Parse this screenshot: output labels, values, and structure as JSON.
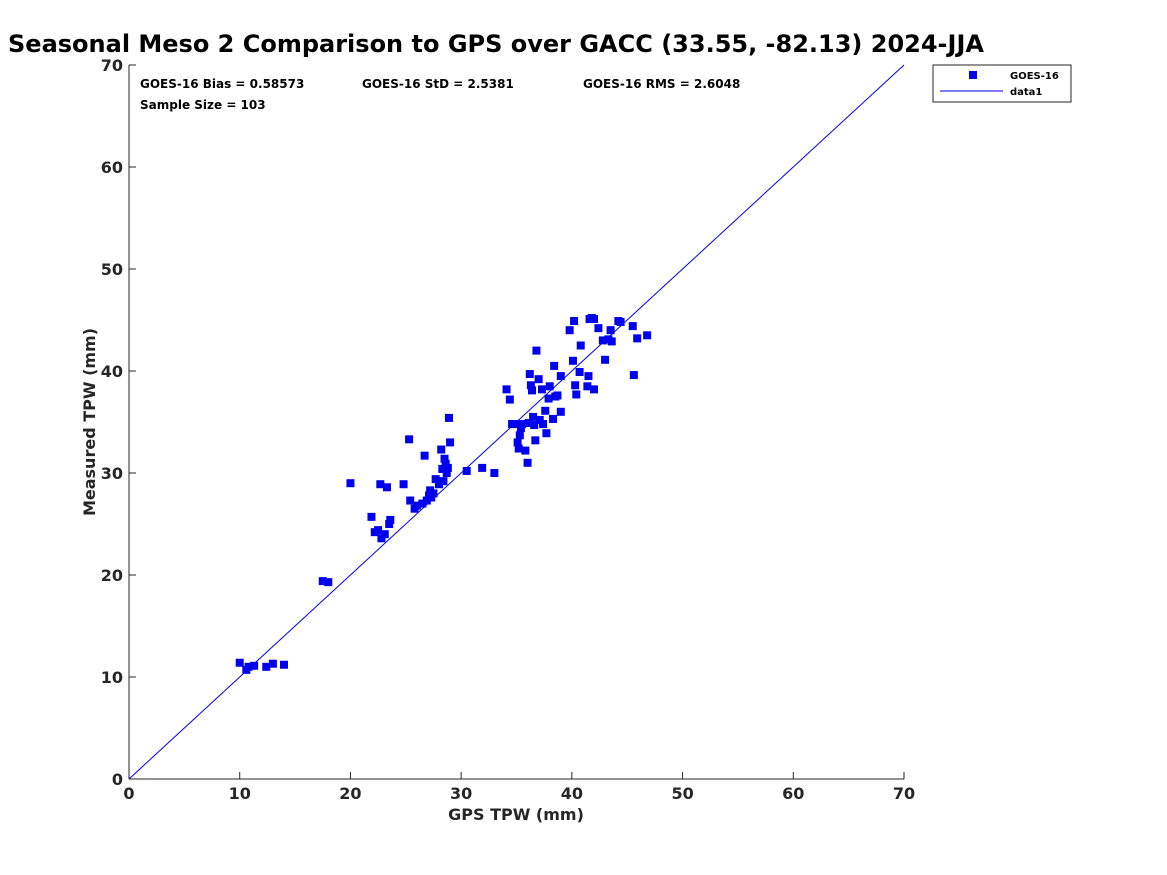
{
  "chart_data": {
    "type": "scatter",
    "title": "Seasonal Meso 2 Comparison to GPS over GACC (33.55, -82.13) 2024-JJA",
    "xlabel": "GPS TPW (mm)",
    "ylabel": "Measured TPW (mm)",
    "xlim": [
      0,
      70
    ],
    "ylim": [
      0,
      70
    ],
    "xticks": [
      "0",
      "10",
      "20",
      "30",
      "40",
      "50",
      "60",
      "70"
    ],
    "yticks": [
      "0",
      "10",
      "20",
      "30",
      "40",
      "50",
      "60",
      "70"
    ],
    "grid": false,
    "legend_position": "top-right, outside plot",
    "annotations": {
      "bias": "GOES-16 Bias = 0.58573",
      "std": "GOES-16 StD = 2.5381",
      "rms": "GOES-16 RMS = 2.6048",
      "sample": "Sample Size = 103"
    },
    "series": [
      {
        "name": "GOES-16",
        "kind": "scatter",
        "marker": "square",
        "color": "#0000ee",
        "points": [
          [
            10.0,
            11.4
          ],
          [
            10.6,
            10.7
          ],
          [
            10.8,
            11.0
          ],
          [
            11.3,
            11.1
          ],
          [
            12.4,
            11.0
          ],
          [
            13.0,
            11.3
          ],
          [
            14.0,
            11.2
          ],
          [
            17.5,
            19.4
          ],
          [
            18.0,
            19.3
          ],
          [
            21.9,
            25.7
          ],
          [
            22.2,
            24.2
          ],
          [
            22.5,
            24.4
          ],
          [
            22.7,
            28.9
          ],
          [
            22.8,
            23.6
          ],
          [
            23.1,
            24.0
          ],
          [
            23.3,
            28.6
          ],
          [
            23.5,
            25.0
          ],
          [
            23.6,
            25.4
          ],
          [
            24.8,
            28.9
          ],
          [
            25.3,
            33.3
          ],
          [
            25.4,
            27.3
          ],
          [
            25.8,
            26.5
          ],
          [
            26.0,
            26.8
          ],
          [
            26.5,
            27.0
          ],
          [
            26.7,
            31.7
          ],
          [
            26.9,
            27.3
          ],
          [
            27.1,
            27.8
          ],
          [
            27.2,
            28.3
          ],
          [
            27.3,
            27.6
          ],
          [
            27.5,
            28.0
          ],
          [
            27.7,
            29.4
          ],
          [
            28.0,
            28.9
          ],
          [
            28.2,
            32.3
          ],
          [
            28.3,
            30.4
          ],
          [
            28.4,
            29.2
          ],
          [
            28.5,
            31.4
          ],
          [
            28.6,
            30.9
          ],
          [
            28.7,
            30.0
          ],
          [
            28.8,
            30.5
          ],
          [
            28.9,
            35.4
          ],
          [
            29.0,
            33.0
          ],
          [
            30.5,
            30.2
          ],
          [
            31.9,
            30.5
          ],
          [
            34.1,
            38.2
          ],
          [
            34.4,
            37.2
          ],
          [
            34.6,
            34.8
          ],
          [
            35.0,
            34.8
          ],
          [
            35.1,
            33.0
          ],
          [
            35.2,
            32.4
          ],
          [
            35.3,
            33.7
          ],
          [
            35.4,
            34.4
          ],
          [
            35.5,
            34.8
          ],
          [
            35.8,
            32.2
          ],
          [
            36.1,
            34.9
          ],
          [
            36.2,
            39.7
          ],
          [
            36.3,
            38.6
          ],
          [
            36.4,
            38.1
          ],
          [
            36.5,
            35.5
          ],
          [
            36.6,
            34.7
          ],
          [
            36.7,
            33.2
          ],
          [
            36.8,
            42.0
          ],
          [
            37.0,
            39.2
          ],
          [
            37.1,
            35.2
          ],
          [
            37.3,
            38.2
          ],
          [
            37.4,
            34.8
          ],
          [
            37.6,
            36.1
          ],
          [
            37.7,
            33.9
          ],
          [
            37.9,
            37.3
          ],
          [
            38.0,
            38.5
          ],
          [
            38.3,
            35.3
          ],
          [
            38.4,
            40.5
          ],
          [
            38.5,
            37.5
          ],
          [
            38.7,
            37.6
          ],
          [
            39.0,
            39.5
          ],
          [
            39.8,
            44.0
          ],
          [
            40.1,
            41.0
          ],
          [
            40.2,
            44.9
          ],
          [
            40.3,
            38.6
          ],
          [
            40.4,
            37.7
          ],
          [
            40.8,
            42.5
          ],
          [
            41.4,
            38.5
          ],
          [
            41.5,
            39.5
          ],
          [
            41.6,
            45.1
          ],
          [
            41.8,
            45.2
          ],
          [
            42.0,
            45.1
          ],
          [
            42.0,
            38.2
          ],
          [
            42.4,
            44.2
          ],
          [
            42.8,
            43.0
          ],
          [
            43.0,
            41.1
          ],
          [
            43.3,
            43.1
          ],
          [
            43.5,
            44.0
          ],
          [
            43.6,
            42.9
          ],
          [
            44.2,
            44.9
          ],
          [
            44.4,
            44.8
          ],
          [
            45.5,
            44.4
          ],
          [
            45.6,
            39.6
          ],
          [
            45.9,
            43.2
          ],
          [
            46.8,
            43.5
          ],
          [
            20.0,
            29.0
          ],
          [
            33.0,
            30.0
          ],
          [
            36.0,
            31.0
          ],
          [
            39.0,
            36.0
          ],
          [
            40.7,
            39.9
          ]
        ]
      },
      {
        "name": "data1",
        "kind": "line",
        "color": "#0000ee",
        "x": [
          0,
          70
        ],
        "y": [
          0,
          70
        ]
      }
    ]
  }
}
